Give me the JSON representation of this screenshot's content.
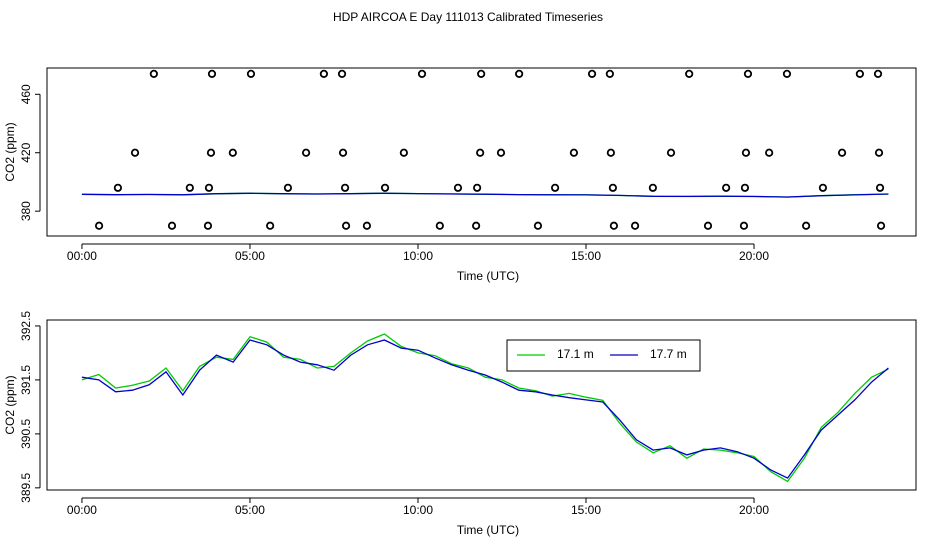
{
  "chart_data": [
    {
      "type": "scatter",
      "title": "HDP AIRCOA E  Day 111013  Calibrated Timeseries",
      "xlabel": "Time (UTC)",
      "ylabel": "CO2 (ppm)",
      "xlim": [
        -1.04,
        24.82
      ],
      "ylim": [
        363,
        478
      ],
      "xticks": [
        {
          "value": 0,
          "label": "00:00"
        },
        {
          "value": 5,
          "label": "05:00"
        },
        {
          "value": 10,
          "label": "10:00"
        },
        {
          "value": 15,
          "label": "15:00"
        },
        {
          "value": 20,
          "label": "20:00"
        }
      ],
      "yticks": [
        380,
        420,
        460
      ],
      "color": "#000000",
      "x": [
        2.14,
        3.87,
        5.03,
        7.2,
        7.74,
        10.12,
        11.88,
        13.01,
        15.18,
        15.71,
        18.07,
        19.82,
        20.98,
        23.15,
        23.69,
        1.58,
        3.84,
        4.49,
        6.67,
        7.77,
        9.58,
        11.85,
        12.47,
        14.64,
        15.74,
        17.53,
        19.76,
        20.45,
        22.62,
        23.72,
        1.07,
        3.21,
        3.78,
        6.13,
        7.83,
        9.02,
        11.19,
        11.76,
        14.08,
        15.8,
        16.99,
        19.17,
        19.73,
        22.05,
        23.75,
        0.51,
        2.68,
        3.75,
        5.6,
        7.86,
        8.48,
        10.65,
        11.73,
        13.57,
        15.83,
        16.46,
        18.63,
        19.7,
        21.55,
        23.78
      ],
      "values": [
        474,
        474,
        474,
        474,
        474,
        474,
        474,
        474,
        474,
        474,
        474,
        474,
        474,
        474,
        474,
        420,
        420,
        420,
        420,
        420,
        420,
        420,
        420,
        420,
        420,
        420,
        420,
        420,
        420,
        420,
        396,
        396,
        396,
        396,
        396,
        396,
        396,
        396,
        396,
        396,
        396,
        396,
        396,
        396,
        396,
        370,
        370,
        370,
        370,
        370,
        370,
        370,
        370,
        370,
        370,
        370,
        370,
        370,
        370,
        370
      ],
      "line_x": [
        0,
        1,
        2,
        3,
        4,
        5,
        6,
        7,
        8,
        9,
        10,
        11,
        12,
        13,
        14,
        15,
        16,
        17,
        18,
        19,
        20,
        21,
        22,
        23,
        24
      ],
      "lines": [
        {
          "color": "#00cc00",
          "values": [
            391.5,
            391.35,
            391.48,
            391.3,
            391.92,
            392.3,
            391.92,
            391.72,
            392.0,
            392.35,
            392.0,
            391.8,
            391.55,
            391.35,
            391.2,
            391.18,
            390.7,
            390.15,
            390.05,
            390.2,
            390.08,
            389.62,
            390.62,
            391.25,
            391.7
          ]
        },
        {
          "color": "#0000cc",
          "values": [
            391.55,
            391.28,
            391.41,
            391.22,
            391.96,
            392.24,
            391.96,
            391.78,
            391.96,
            392.24,
            392.05,
            391.78,
            391.59,
            391.31,
            391.22,
            391.13,
            390.76,
            390.2,
            390.11,
            390.24,
            390.05,
            389.68,
            390.57,
            391.13,
            391.72
          ]
        }
      ]
    },
    {
      "type": "line",
      "xlabel": "Time (UTC)",
      "ylabel": "CO2 (ppm)",
      "xlim": [
        -1.04,
        24.82
      ],
      "ylim": [
        389.46,
        392.61
      ],
      "xticks": [
        {
          "value": 0,
          "label": "00:00"
        },
        {
          "value": 5,
          "label": "05:00"
        },
        {
          "value": 10,
          "label": "10:00"
        },
        {
          "value": 15,
          "label": "15:00"
        },
        {
          "value": 20,
          "label": "20:00"
        }
      ],
      "yticks": [
        389.5,
        390.5,
        391.5,
        392.5
      ],
      "x": [
        0,
        0.5,
        1,
        1.5,
        2,
        2.5,
        3,
        3.5,
        4,
        4.5,
        5,
        5.5,
        6,
        6.5,
        7,
        7.5,
        8,
        8.5,
        9,
        9.5,
        10,
        10.5,
        11,
        11.5,
        12,
        12.5,
        13,
        13.5,
        14,
        14.5,
        15,
        15.5,
        16,
        16.5,
        17,
        17.5,
        18,
        18.5,
        19,
        19.5,
        20,
        20.5,
        21,
        21.5,
        22,
        22.5,
        23,
        23.5,
        24
      ],
      "series": [
        {
          "name": "17.1 m",
          "color": "#00cc00",
          "values": [
            391.5,
            391.6,
            391.35,
            391.4,
            391.48,
            391.72,
            391.3,
            391.75,
            391.92,
            391.88,
            392.3,
            392.2,
            391.92,
            391.88,
            391.72,
            391.75,
            392.0,
            392.22,
            392.35,
            392.12,
            392.0,
            391.95,
            391.8,
            391.72,
            391.55,
            391.5,
            391.35,
            391.3,
            391.2,
            391.25,
            391.18,
            391.12,
            390.7,
            390.35,
            390.15,
            390.28,
            390.05,
            390.22,
            390.2,
            390.15,
            390.08,
            389.8,
            389.62,
            390.05,
            390.62,
            390.9,
            391.25,
            391.55,
            391.7
          ]
        },
        {
          "name": "17.7 m",
          "color": "#0000cc",
          "values": [
            391.55,
            391.5,
            391.28,
            391.31,
            391.41,
            391.65,
            391.22,
            391.68,
            391.96,
            391.83,
            392.24,
            392.15,
            391.96,
            391.83,
            391.78,
            391.68,
            391.96,
            392.15,
            392.24,
            392.09,
            392.05,
            391.91,
            391.78,
            391.68,
            391.59,
            391.46,
            391.31,
            391.28,
            391.22,
            391.17,
            391.13,
            391.09,
            390.76,
            390.39,
            390.2,
            390.24,
            390.11,
            390.2,
            390.24,
            390.17,
            390.05,
            389.83,
            389.68,
            390.11,
            390.57,
            390.85,
            391.13,
            391.46,
            391.72
          ]
        }
      ]
    }
  ]
}
